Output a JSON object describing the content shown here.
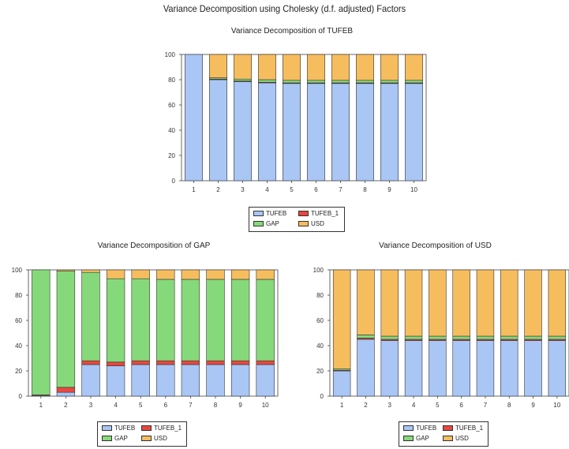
{
  "title": "Variance Decomposition using Cholesky (d.f. adjusted) Factors",
  "series_colors": {
    "TUFEB": "#a9c6f5",
    "TUFEB_1": "#e8473f",
    "GAP": "#86d97a",
    "USD": "#f6bd5f"
  },
  "chart_data": [
    {
      "type": "bar",
      "stacked": true,
      "title": "Variance Decomposition of TUFEB",
      "xlabel": "",
      "ylabel": "",
      "ylim": [
        0,
        100
      ],
      "yticks": [
        "0",
        "20",
        "40",
        "60",
        "80",
        "100"
      ],
      "categories": [
        "1",
        "2",
        "3",
        "4",
        "5",
        "6",
        "7",
        "8",
        "9",
        "10"
      ],
      "grid": false,
      "legend": "below",
      "series": [
        {
          "name": "TUFEB",
          "values": [
            100,
            80,
            78.5,
            77.5,
            77,
            77,
            77,
            77,
            77,
            77
          ]
        },
        {
          "name": "TUFEB_1",
          "values": [
            0,
            0.5,
            0.5,
            0.5,
            0.5,
            0.5,
            0.5,
            0.5,
            0.5,
            0.5
          ]
        },
        {
          "name": "GAP",
          "values": [
            0,
            1,
            1.5,
            2,
            2,
            2,
            2,
            2,
            2,
            2
          ]
        },
        {
          "name": "USD",
          "values": [
            0,
            18.5,
            19.5,
            20,
            20.5,
            20.5,
            20.5,
            20.5,
            20.5,
            20.5
          ]
        }
      ]
    },
    {
      "type": "bar",
      "stacked": true,
      "title": "Variance Decomposition of GAP",
      "xlabel": "",
      "ylabel": "",
      "ylim": [
        0,
        100
      ],
      "yticks": [
        "0",
        "20",
        "40",
        "60",
        "80",
        "100"
      ],
      "categories": [
        "1",
        "2",
        "3",
        "4",
        "5",
        "6",
        "7",
        "8",
        "9",
        "10"
      ],
      "grid": false,
      "legend": "below",
      "series": [
        {
          "name": "TUFEB",
          "values": [
            0.5,
            3,
            25,
            24,
            25,
            25,
            25,
            25,
            25,
            25
          ]
        },
        {
          "name": "TUFEB_1",
          "values": [
            0.5,
            4,
            3,
            3,
            3,
            3,
            3,
            3,
            3,
            3
          ]
        },
        {
          "name": "GAP",
          "values": [
            99,
            92,
            70,
            66,
            65,
            64.5,
            64.5,
            64.5,
            64.5,
            64.5
          ]
        },
        {
          "name": "USD",
          "values": [
            0,
            1,
            2,
            7,
            7,
            7.5,
            7.5,
            7.5,
            7.5,
            7.5
          ]
        }
      ]
    },
    {
      "type": "bar",
      "stacked": true,
      "title": "Variance Decomposition of USD",
      "xlabel": "",
      "ylabel": "",
      "ylim": [
        0,
        100
      ],
      "yticks": [
        "0",
        "20",
        "40",
        "60",
        "80",
        "100"
      ],
      "categories": [
        "1",
        "2",
        "3",
        "4",
        "5",
        "6",
        "7",
        "8",
        "9",
        "10"
      ],
      "grid": false,
      "legend": "below",
      "series": [
        {
          "name": "TUFEB",
          "values": [
            20,
            45,
            44,
            44,
            44,
            44,
            44,
            44,
            44,
            44
          ]
        },
        {
          "name": "TUFEB_1",
          "values": [
            0.5,
            1,
            1,
            1,
            1,
            1,
            1,
            1,
            1,
            1
          ]
        },
        {
          "name": "GAP",
          "values": [
            1,
            2.5,
            2.5,
            2.5,
            2.5,
            2.5,
            2.5,
            2.5,
            2.5,
            2.5
          ]
        },
        {
          "name": "USD",
          "values": [
            78.5,
            51.5,
            52.5,
            52.5,
            52.5,
            52.5,
            52.5,
            52.5,
            52.5,
            52.5
          ]
        }
      ]
    }
  ]
}
